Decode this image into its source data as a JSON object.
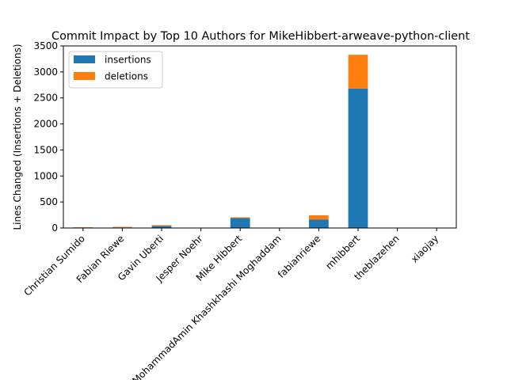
{
  "chart_data": {
    "type": "bar",
    "stacked": true,
    "title": "Commit Impact by Top 10 Authors for MikeHibbert-arweave-python-client",
    "xlabel": "",
    "ylabel": "Lines Changed (Insertions + Deletions)",
    "ylim": [
      0,
      3500
    ],
    "yticks": [
      0,
      500,
      1000,
      1500,
      2000,
      2500,
      3000,
      3500
    ],
    "grid": false,
    "legend": "top-left",
    "categories": [
      "Christian Sumido",
      "Fabian Riewe",
      "Gavin Uberti",
      "Jesper Noehr",
      "Mike Hibbert",
      "MohammadAmin Khashkhashi Moghaddam",
      "fabianriewe",
      "mhibbert",
      "theblazehen",
      "xiaojay"
    ],
    "series": [
      {
        "name": "insertions",
        "color": "#1f77b4",
        "values": [
          8,
          12,
          40,
          2,
          190,
          2,
          165,
          2680,
          2,
          2
        ]
      },
      {
        "name": "deletions",
        "color": "#ff7f0e",
        "values": [
          6,
          10,
          15,
          1,
          15,
          1,
          80,
          650,
          1,
          1
        ]
      }
    ]
  }
}
